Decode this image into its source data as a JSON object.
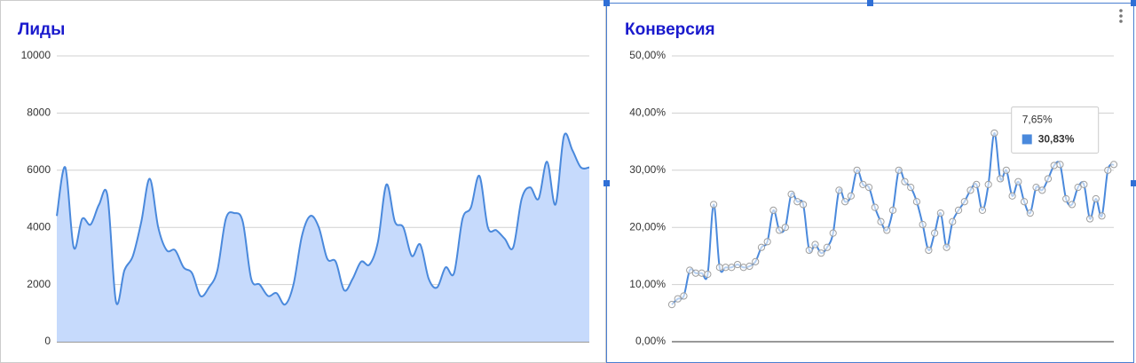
{
  "chart_data": [
    {
      "type": "area",
      "title": "Лиды",
      "color": "#4a89dc",
      "fill": "#c6dafc",
      "ylim": [
        0,
        10000
      ],
      "yticks": [
        0,
        2000,
        4000,
        6000,
        8000,
        10000
      ],
      "grid": true,
      "values": [
        4400,
        6100,
        3300,
        4300,
        4100,
        4800,
        5100,
        1400,
        2500,
        3000,
        4200,
        5700,
        4000,
        3200,
        3200,
        2600,
        2400,
        1600,
        1900,
        2500,
        4300,
        4500,
        4200,
        2200,
        2000,
        1600,
        1700,
        1300,
        2000,
        3700,
        4400,
        4000,
        2900,
        2800,
        1800,
        2200,
        2800,
        2700,
        3500,
        5500,
        4200,
        4000,
        3000,
        3400,
        2200,
        1900,
        2600,
        2400,
        4300,
        4700,
        5800,
        4000,
        3900,
        3600,
        3300,
        5000,
        5400,
        5000,
        6300,
        4800,
        7200,
        6700,
        6100,
        6100
      ]
    },
    {
      "type": "line",
      "title": "Конверсия",
      "color": "#4a89dc",
      "marker": "#9e9e9e",
      "ylim": [
        0,
        50
      ],
      "grid": true,
      "yticks": [
        {
          "value": 0,
          "label": "0,00%"
        },
        {
          "value": 10,
          "label": "10,00%"
        },
        {
          "value": 20,
          "label": "20,00%"
        },
        {
          "value": 30,
          "label": "30,00%"
        },
        {
          "value": 40,
          "label": "40,00%"
        },
        {
          "value": 50,
          "label": "50,00%"
        }
      ],
      "values": [
        6.5,
        7.5,
        8,
        12.5,
        12,
        12,
        11.8,
        24,
        13,
        13,
        13,
        13.5,
        13,
        13.2,
        14,
        16.5,
        17.5,
        23,
        19.5,
        20,
        25.8,
        24.5,
        24,
        16,
        17,
        15.5,
        16.5,
        19,
        26.5,
        24.5,
        25.5,
        30,
        27.5,
        27,
        23.5,
        21,
        19.5,
        23,
        30,
        28,
        27,
        24.5,
        20.5,
        16,
        19,
        22.5,
        16.5,
        21,
        23,
        24.5,
        26.5,
        27.5,
        23,
        27.5,
        36.5,
        28.5,
        30,
        25.5,
        28,
        24.5,
        22.5,
        27,
        26.5,
        28.5,
        30.83,
        31,
        25,
        24,
        27,
        27.5,
        21.5,
        25,
        22,
        30,
        31
      ],
      "tooltip": {
        "title": "7,65%",
        "label": "30,83%",
        "value": 30.83
      }
    }
  ]
}
